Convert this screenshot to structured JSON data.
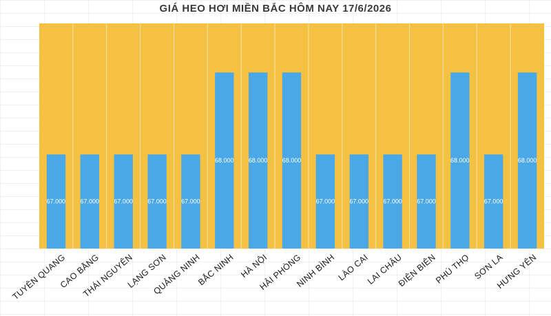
{
  "chart_data": {
    "type": "bar",
    "title": "GIÁ HEO HƠI MIỀN BẮC HÔM NAY 17/6/2026",
    "xlabel": "",
    "ylabel": "",
    "categories": [
      "TUYÊN QUANG",
      "CAO BẰNG",
      "THÁI NGUYÊN",
      "LẠNG SƠN",
      "QUẢNG NINH",
      "BẮC NINH",
      "HÀ NỘI",
      "HẢI PHÒNG",
      "NINH BÌNH",
      "LÀO CAI",
      "LAI CHÂU",
      "ĐIỆN BIÊN",
      "PHÚ THỌ",
      "SƠN LA",
      "HƯNG YÊN"
    ],
    "values": [
      67000,
      67000,
      67000,
      67000,
      67000,
      68000,
      68000,
      68000,
      67000,
      67000,
      67000,
      67000,
      68000,
      67000,
      68000
    ],
    "value_labels": [
      "67.000",
      "67.000",
      "67.000",
      "67.000",
      "67.000",
      "68.000",
      "68.000",
      "68.000",
      "67.000",
      "67.000",
      "67.000",
      "67.000",
      "68.000",
      "67.000",
      "68.000"
    ],
    "ylim": [
      65850,
      68600
    ],
    "grid": false,
    "legend": "none",
    "colors": {
      "bar": "#4BA8E6",
      "plot_background": "#F4C142"
    }
  }
}
